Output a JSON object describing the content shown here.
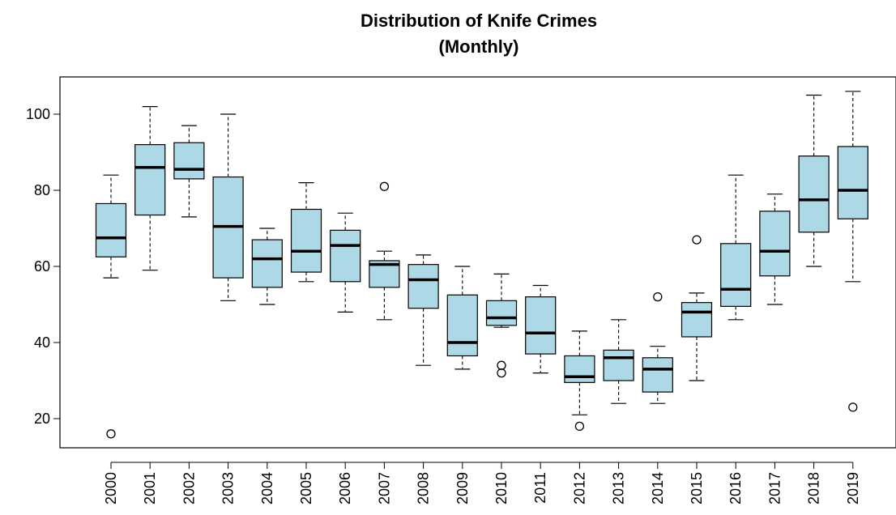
{
  "chart_data": {
    "type": "boxplot",
    "title_lines": [
      "Distribution of Knife Crimes",
      "(Monthly)"
    ],
    "xlabel": "",
    "ylabel": "",
    "ylim": [
      12,
      110
    ],
    "yticks": [
      20,
      40,
      60,
      80,
      100
    ],
    "grid": false,
    "legend": "none",
    "categories": [
      "2000",
      "2001",
      "2002",
      "2003",
      "2004",
      "2005",
      "2006",
      "2007",
      "2008",
      "2009",
      "2010",
      "2011",
      "2012",
      "2013",
      "2014",
      "2015",
      "2016",
      "2017",
      "2018",
      "2019"
    ],
    "series": [
      {
        "category": "2000",
        "whisker_low": 57,
        "q1": 62.5,
        "median": 67.5,
        "q3": 76.5,
        "whisker_high": 84,
        "outliers": [
          16
        ]
      },
      {
        "category": "2001",
        "whisker_low": 59,
        "q1": 73.5,
        "median": 86,
        "q3": 92,
        "whisker_high": 102,
        "outliers": []
      },
      {
        "category": "2002",
        "whisker_low": 73,
        "q1": 83,
        "median": 85.5,
        "q3": 92.5,
        "whisker_high": 97,
        "outliers": []
      },
      {
        "category": "2003",
        "whisker_low": 51,
        "q1": 57,
        "median": 70.5,
        "q3": 83.5,
        "whisker_high": 100,
        "outliers": []
      },
      {
        "category": "2004",
        "whisker_low": 50,
        "q1": 54.5,
        "median": 62,
        "q3": 67,
        "whisker_high": 70,
        "outliers": []
      },
      {
        "category": "2005",
        "whisker_low": 56,
        "q1": 58.5,
        "median": 64,
        "q3": 75,
        "whisker_high": 82,
        "outliers": []
      },
      {
        "category": "2006",
        "whisker_low": 48,
        "q1": 56,
        "median": 65.5,
        "q3": 69.5,
        "whisker_high": 74,
        "outliers": []
      },
      {
        "category": "2007",
        "whisker_low": 46,
        "q1": 54.5,
        "median": 60.5,
        "q3": 61.5,
        "whisker_high": 64,
        "outliers": [
          81
        ]
      },
      {
        "category": "2008",
        "whisker_low": 34,
        "q1": 49,
        "median": 56.5,
        "q3": 60.5,
        "whisker_high": 63,
        "outliers": []
      },
      {
        "category": "2009",
        "whisker_low": 33,
        "q1": 36.5,
        "median": 40,
        "q3": 52.5,
        "whisker_high": 60,
        "outliers": []
      },
      {
        "category": "2010",
        "whisker_low": 44,
        "q1": 44.5,
        "median": 46.5,
        "q3": 51,
        "whisker_high": 58,
        "outliers": [
          34,
          32
        ]
      },
      {
        "category": "2011",
        "whisker_low": 32,
        "q1": 37,
        "median": 42.5,
        "q3": 52,
        "whisker_high": 55,
        "outliers": []
      },
      {
        "category": "2012",
        "whisker_low": 21,
        "q1": 29.5,
        "median": 31,
        "q3": 36.5,
        "whisker_high": 43,
        "outliers": [
          18
        ]
      },
      {
        "category": "2013",
        "whisker_low": 24,
        "q1": 30,
        "median": 36,
        "q3": 38,
        "whisker_high": 46,
        "outliers": []
      },
      {
        "category": "2014",
        "whisker_low": 24,
        "q1": 27,
        "median": 33,
        "q3": 36,
        "whisker_high": 39,
        "outliers": [
          52
        ]
      },
      {
        "category": "2015",
        "whisker_low": 30,
        "q1": 41.5,
        "median": 48,
        "q3": 50.5,
        "whisker_high": 53,
        "outliers": [
          67
        ]
      },
      {
        "category": "2016",
        "whisker_low": 46,
        "q1": 49.5,
        "median": 54,
        "q3": 66,
        "whisker_high": 84,
        "outliers": []
      },
      {
        "category": "2017",
        "whisker_low": 50,
        "q1": 57.5,
        "median": 64,
        "q3": 74.5,
        "whisker_high": 79,
        "outliers": []
      },
      {
        "category": "2018",
        "whisker_low": 60,
        "q1": 69,
        "median": 77.5,
        "q3": 89,
        "whisker_high": 105,
        "outliers": []
      },
      {
        "category": "2019",
        "whisker_low": 56,
        "q1": 72.5,
        "median": 80,
        "q3": 91.5,
        "whisker_high": 106,
        "outliers": [
          23
        ]
      }
    ],
    "colors": {
      "box_fill": "#add8e6",
      "box_stroke": "#000000",
      "median": "#000000",
      "whisker": "#000000",
      "outlier": "#000000",
      "frame": "#000000"
    }
  }
}
